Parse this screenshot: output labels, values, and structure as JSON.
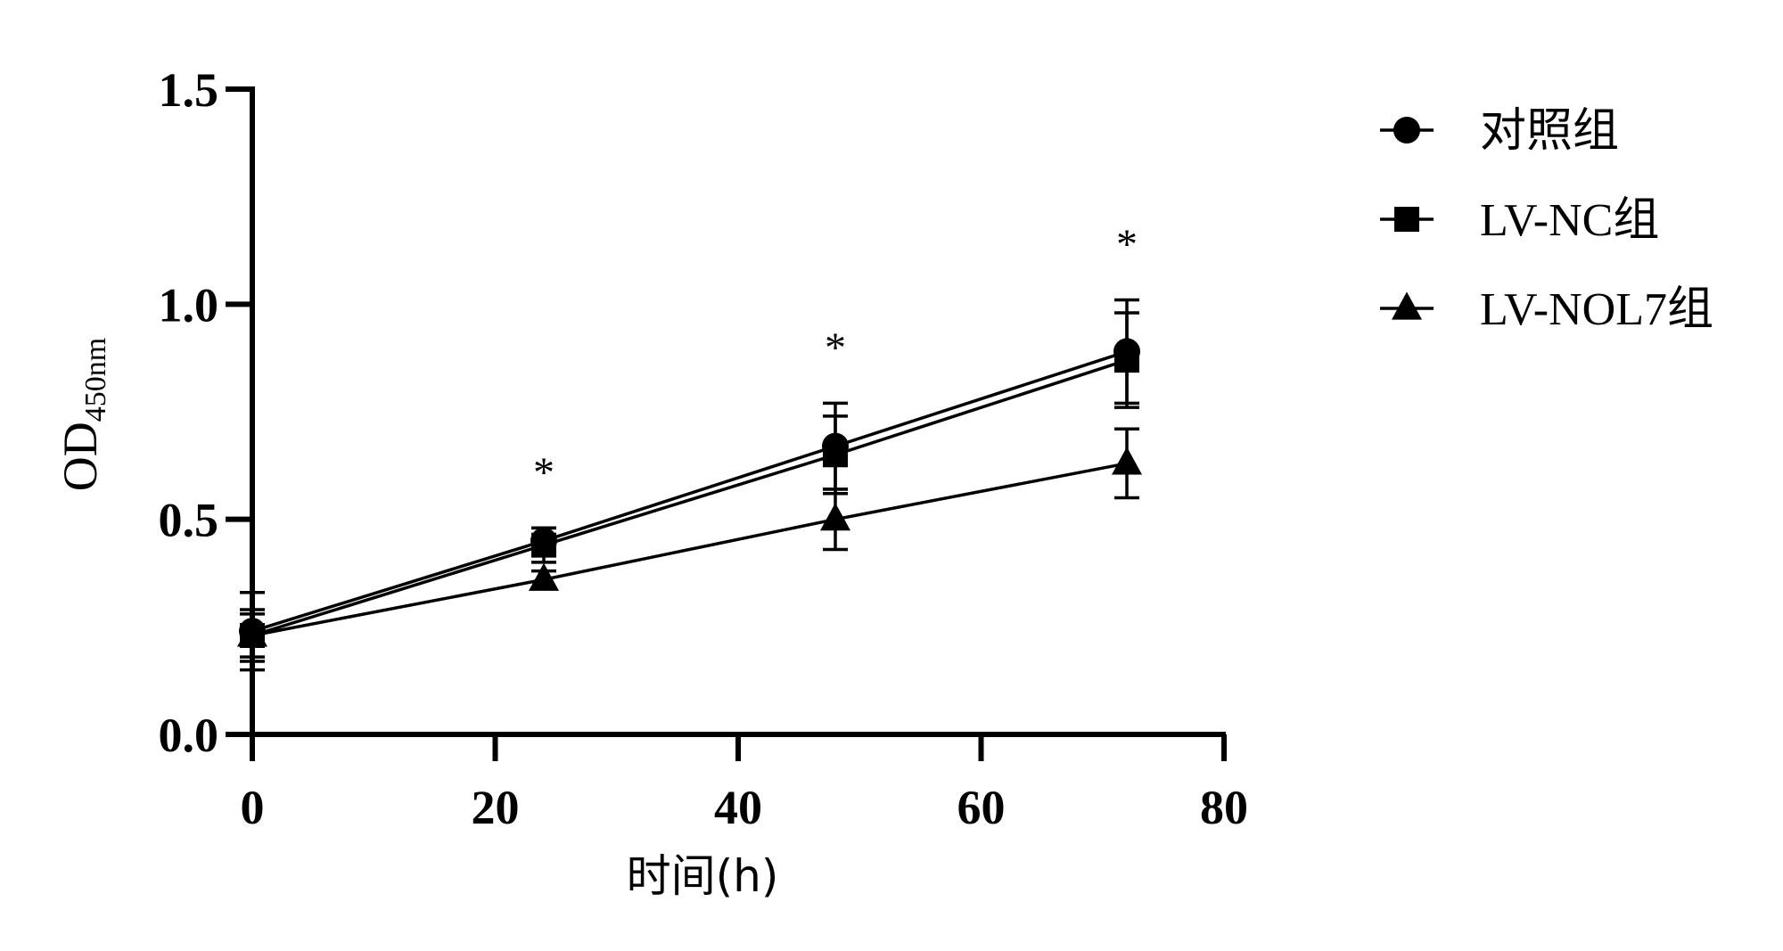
{
  "chart_data": {
    "type": "line",
    "xlabel": "时间(h)",
    "ylabel": "OD",
    "ylabel_subscript": "450nm",
    "xlim": [
      0,
      80
    ],
    "ylim": [
      0.0,
      1.5
    ],
    "x_ticks": [
      "0",
      "20",
      "40",
      "60",
      "80"
    ],
    "x_tick_values": [
      0,
      20,
      40,
      60,
      80
    ],
    "y_ticks": [
      "0.0",
      "0.5",
      "1.0",
      "1.5"
    ],
    "y_tick_values": [
      0.0,
      0.5,
      1.0,
      1.5
    ],
    "grid": false,
    "legend_position": "top-right",
    "x": [
      0,
      24,
      48,
      72
    ],
    "series": [
      {
        "name": "对照组",
        "marker": "circle",
        "values": [
          0.24,
          0.45,
          0.67,
          0.89
        ],
        "errors": [
          0.09,
          0.03,
          0.1,
          0.12
        ]
      },
      {
        "name": "LV-NC组",
        "marker": "square",
        "values": [
          0.23,
          0.44,
          0.65,
          0.87
        ],
        "errors": [
          0.06,
          0.04,
          0.09,
          0.11
        ]
      },
      {
        "name": "LV-NOL7组",
        "marker": "triangle",
        "values": [
          0.23,
          0.36,
          0.5,
          0.63
        ],
        "errors": [
          0.05,
          0.02,
          0.07,
          0.08
        ]
      }
    ],
    "annotations": [
      {
        "text": "*",
        "x": 24,
        "y": 0.63
      },
      {
        "text": "*",
        "x": 48,
        "y": 0.92
      },
      {
        "text": "*",
        "x": 72,
        "y": 1.16
      }
    ],
    "colors": {
      "line": "#000000",
      "background": "#ffffff"
    }
  }
}
